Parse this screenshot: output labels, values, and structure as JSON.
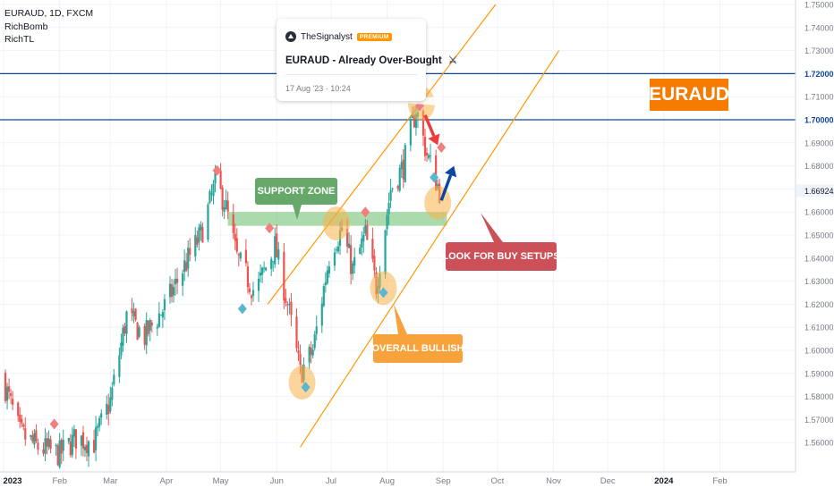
{
  "legend": {
    "symbol_line": "EURAUD, 1D, FXCM",
    "indicators": [
      "RichBomb",
      "RichTL"
    ]
  },
  "annotation": {
    "author": "TheSignalyst",
    "badge": "PREMIUM",
    "title": "EURAUD - Already Over-Bought",
    "title_icon": "crossed-swords-icon",
    "date": "17 Aug '23 · 10:24"
  },
  "callouts": {
    "support_zone": "SUPPORT ZONE",
    "overall_bullish": "OVERALL BULLISH",
    "buy_setups": "LOOK FOR BUY SETUPS",
    "brand": "EURAUD"
  },
  "colors": {
    "up": "#26a69a",
    "down": "#ef5350",
    "channel": "#ff9800",
    "support_zone": "#66bb6a",
    "resistance": "#0d47a1",
    "buy_arrow": "#0d47a1",
    "sell_arrow": "#ef3b3b",
    "callout_support": "#66a869",
    "callout_bullish": "#f7a23a",
    "callout_buy": "#cc5058",
    "brand": "#f57c00"
  },
  "chart_data": {
    "type": "candlestick",
    "symbol": "EURAUD",
    "timeframe": "1D",
    "source": "FXCM",
    "ylim": [
      1.55,
      1.75
    ],
    "y_ticks": [
      "1.75000",
      "1.74000",
      "1.73000",
      "1.72000",
      "1.71000",
      "1.70000",
      "1.69000",
      "1.68000",
      "1.67000",
      "1.66000",
      "1.65000",
      "1.64000",
      "1.63000",
      "1.62000",
      "1.61000",
      "1.60000",
      "1.59000",
      "1.58000",
      "1.57000",
      "1.56000"
    ],
    "x_ticks": [
      "2023",
      "Feb",
      "Mar",
      "Apr",
      "May",
      "Jun",
      "Jul",
      "Aug",
      "Sep",
      "Oct",
      "Nov",
      "Dec",
      "2024",
      "Feb"
    ],
    "x_range": [
      "2022-12-31",
      "2024-02-24"
    ],
    "last_price": "1.66924",
    "resistance_levels": [
      {
        "value": 1.72,
        "label": "1.72000"
      },
      {
        "value": 1.7,
        "label": "1.70000"
      }
    ],
    "support_zone": [
      1.654,
      1.66
    ],
    "close_series": [
      {
        "date": "2022-12-31",
        "value": 1.589
      },
      {
        "date": "2023-01-10",
        "value": 1.564
      },
      {
        "date": "2023-01-20",
        "value": 1.558
      },
      {
        "date": "2023-02-01",
        "value": 1.555
      },
      {
        "date": "2023-02-10",
        "value": 1.562
      },
      {
        "date": "2023-02-20",
        "value": 1.56
      },
      {
        "date": "2023-03-01",
        "value": 1.578
      },
      {
        "date": "2023-03-10",
        "value": 1.615
      },
      {
        "date": "2023-03-20",
        "value": 1.606
      },
      {
        "date": "2023-04-01",
        "value": 1.62
      },
      {
        "date": "2023-04-10",
        "value": 1.635
      },
      {
        "date": "2023-04-20",
        "value": 1.65
      },
      {
        "date": "2023-04-28",
        "value": 1.672
      },
      {
        "date": "2023-05-03",
        "value": 1.665
      },
      {
        "date": "2023-05-10",
        "value": 1.64
      },
      {
        "date": "2023-05-20",
        "value": 1.625
      },
      {
        "date": "2023-05-31",
        "value": 1.645
      },
      {
        "date": "2023-06-07",
        "value": 1.62
      },
      {
        "date": "2023-06-14",
        "value": 1.59
      },
      {
        "date": "2023-06-21",
        "value": 1.6
      },
      {
        "date": "2023-07-01",
        "value": 1.645
      },
      {
        "date": "2023-07-07",
        "value": 1.652
      },
      {
        "date": "2023-07-13",
        "value": 1.635
      },
      {
        "date": "2023-07-20",
        "value": 1.65
      },
      {
        "date": "2023-07-26",
        "value": 1.628
      },
      {
        "date": "2023-08-03",
        "value": 1.67
      },
      {
        "date": "2023-08-10",
        "value": 1.68
      },
      {
        "date": "2023-08-17",
        "value": 1.705
      },
      {
        "date": "2023-08-23",
        "value": 1.685
      },
      {
        "date": "2023-08-30",
        "value": 1.6692
      }
    ],
    "channel_upper": [
      {
        "date": "2023-05-27",
        "value": 1.62
      },
      {
        "date": "2023-09-30",
        "value": 1.75
      }
    ],
    "channel_lower": [
      {
        "date": "2023-06-14",
        "value": 1.558
      },
      {
        "date": "2023-11-04",
        "value": 1.73
      }
    ],
    "sell_signals": [
      {
        "date": "2023-01-29",
        "value": 1.568
      },
      {
        "date": "2023-04-29",
        "value": 1.678
      },
      {
        "date": "2023-05-28",
        "value": 1.653
      },
      {
        "date": "2023-07-20",
        "value": 1.66
      },
      {
        "date": "2023-08-19",
        "value": 1.706
      },
      {
        "date": "2023-08-31",
        "value": 1.688
      }
    ],
    "buy_signals": [
      {
        "date": "2023-05-13",
        "value": 1.618
      },
      {
        "date": "2023-06-17",
        "value": 1.584
      },
      {
        "date": "2023-07-30",
        "value": 1.625
      },
      {
        "date": "2023-08-27",
        "value": 1.675
      }
    ],
    "highlight_circles": [
      {
        "date": "2023-06-15",
        "value": 1.586
      },
      {
        "date": "2023-07-04",
        "value": 1.655
      },
      {
        "date": "2023-07-30",
        "value": 1.627
      },
      {
        "date": "2023-08-20",
        "value": 1.707
      },
      {
        "date": "2023-08-29",
        "value": 1.664
      }
    ],
    "arrows": [
      {
        "kind": "sell",
        "from": {
          "date": "2023-08-22",
          "value": 1.702
        },
        "to": {
          "date": "2023-08-29",
          "value": 1.689
        }
      },
      {
        "kind": "buy",
        "from": {
          "date": "2023-08-31",
          "value": 1.665
        },
        "to": {
          "date": "2023-09-07",
          "value": 1.68
        }
      }
    ]
  }
}
